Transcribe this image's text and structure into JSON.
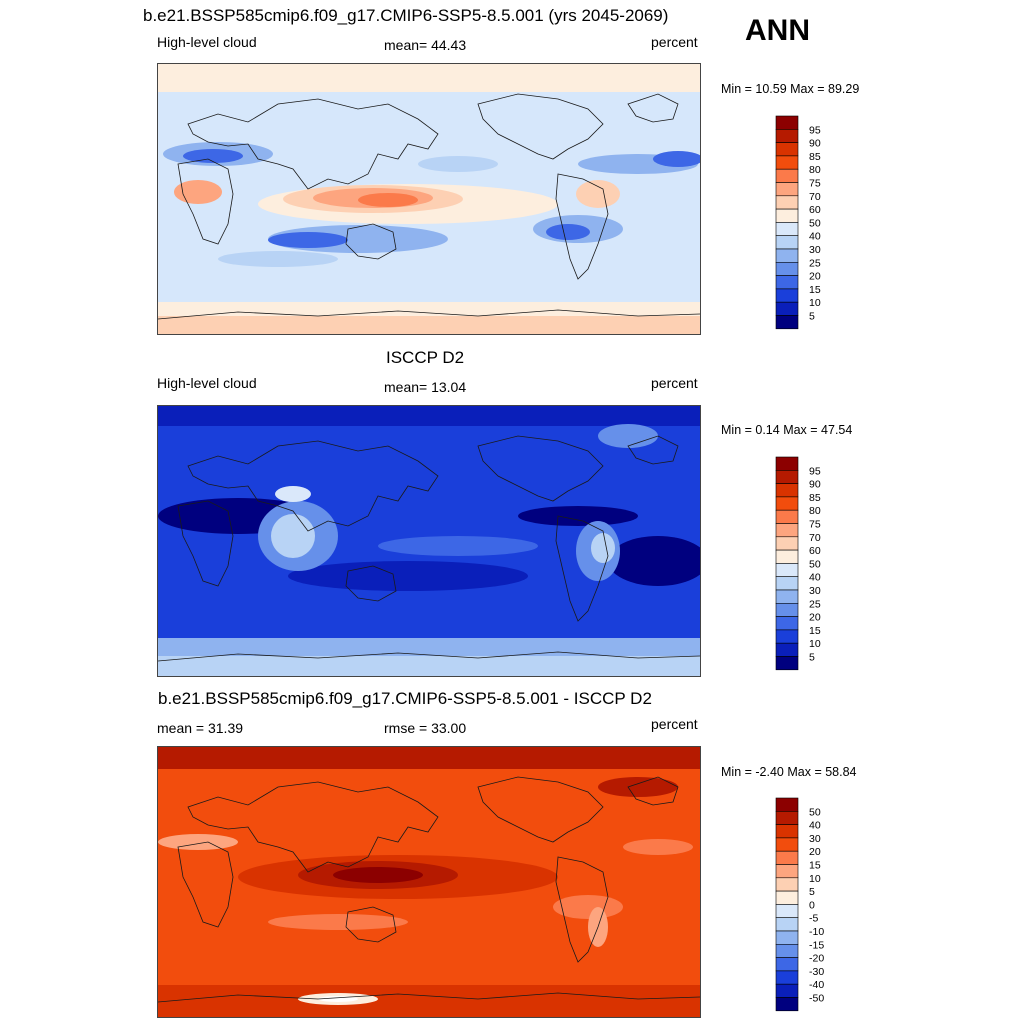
{
  "season": "ANN",
  "panels": [
    {
      "title": "b.e21.BSSP585cmip6.f09_g17.CMIP6-SSP5-8.5.001 (yrs 2045-2069)",
      "left_label": "High-level cloud",
      "center_label": "mean=  44.43",
      "right_label": "percent",
      "minmax": "Min =  10.59 Max =  89.29"
    },
    {
      "title": "ISCCP D2",
      "left_label": "High-level cloud",
      "center_label": "mean=  13.04",
      "right_label": "percent",
      "minmax": "Min =   0.14 Max =  47.54"
    },
    {
      "title": "b.e21.BSSP585cmip6.f09_g17.CMIP6-SSP5-8.5.001 - ISCCP D2",
      "left_label": "mean =  31.39",
      "center_label": "rmse =  33.00",
      "right_label": "percent",
      "minmax": "Min =  -2.40 Max =  58.84"
    }
  ],
  "chart_data": [
    {
      "type": "heatmap",
      "title": "b.e21.BSSP585cmip6.f09_g17.CMIP6-SSP5-8.5.001 (yrs 2045-2069)",
      "variable": "High-level cloud",
      "units": "percent",
      "mean": 44.43,
      "min": 10.59,
      "max": 89.29,
      "colorbar_levels": [
        "95",
        "90",
        "85",
        "80",
        "75",
        "70",
        "60",
        "50",
        "40",
        "30",
        "25",
        "20",
        "15",
        "10",
        "5"
      ],
      "colorbar_colors": [
        "#8c0000",
        "#b51a00",
        "#d93300",
        "#f24d0d",
        "#fb7a4a",
        "#fda57f",
        "#fdd0b3",
        "#fdeede",
        "#dae8fa",
        "#b8d3f5",
        "#8fb3ef",
        "#6690ea",
        "#3d67e6",
        "#1a3fda",
        "#0a1fba",
        "#00007f"
      ]
    },
    {
      "type": "heatmap",
      "title": "ISCCP D2",
      "variable": "High-level cloud",
      "units": "percent",
      "mean": 13.04,
      "min": 0.14,
      "max": 47.54,
      "colorbar_levels": [
        "95",
        "90",
        "85",
        "80",
        "75",
        "70",
        "60",
        "50",
        "40",
        "30",
        "25",
        "20",
        "15",
        "10",
        "5"
      ],
      "colorbar_colors": [
        "#8c0000",
        "#b51a00",
        "#d93300",
        "#f24d0d",
        "#fb7a4a",
        "#fda57f",
        "#fdd0b3",
        "#fdeede",
        "#dae8fa",
        "#b8d3f5",
        "#8fb3ef",
        "#6690ea",
        "#3d67e6",
        "#1a3fda",
        "#0a1fba",
        "#00007f"
      ]
    },
    {
      "type": "heatmap",
      "title": "b.e21.BSSP585cmip6.f09_g17.CMIP6-SSP5-8.5.001 - ISCCP D2",
      "units": "percent",
      "mean": 31.39,
      "rmse": 33.0,
      "min": -2.4,
      "max": 58.84,
      "colorbar_levels": [
        "50",
        "40",
        "30",
        "20",
        "15",
        "10",
        "5",
        "0",
        "-5",
        "-10",
        "-15",
        "-20",
        "-30",
        "-40",
        "-50"
      ],
      "colorbar_colors": [
        "#8c0000",
        "#b51a00",
        "#d93300",
        "#f24d0d",
        "#fb7a4a",
        "#fda57f",
        "#fdd0b3",
        "#fdeede",
        "#dae8fa",
        "#b8d3f5",
        "#8fb3ef",
        "#6690ea",
        "#3d67e6",
        "#1a3fda",
        "#0a1fba",
        "#00007f"
      ]
    }
  ]
}
